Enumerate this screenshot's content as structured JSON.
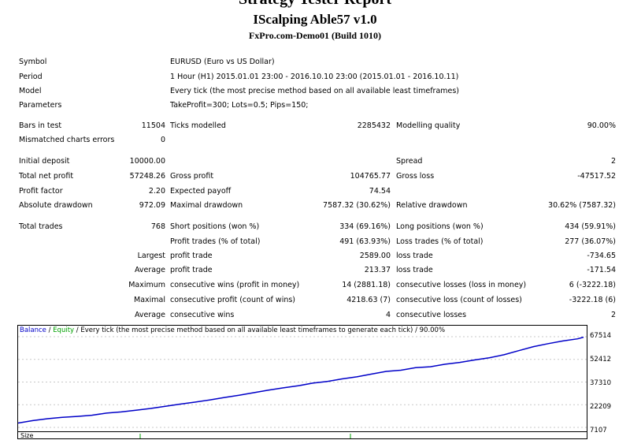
{
  "header": {
    "title": "Strategy Tester Report",
    "expert": "IScalping Able57 v1.0",
    "server": "FxPro.com-Demo01 (Build 1010)"
  },
  "info": [
    {
      "label": "Symbol",
      "value": "EURUSD (Euro vs US Dollar)"
    },
    {
      "label": "Period",
      "value": "1 Hour (H1) 2015.01.01 23:00 - 2016.10.10 23:00 (2015.01.01 - 2016.10.11)"
    },
    {
      "label": "Model",
      "value": "Every tick (the most precise method based on all available least timeframes)"
    },
    {
      "label": "Parameters",
      "value": "TakeProfit=300; Lots=0.5; Pips=150;"
    }
  ],
  "stats": {
    "bars_label": "Bars in test",
    "bars": "11504",
    "ticks_label": "Ticks modelled",
    "ticks": "2285432",
    "quality_label": "Modelling quality",
    "quality": "90.00%",
    "mismatch_label": "Mismatched charts errors",
    "mismatch": "0",
    "deposit_label": "Initial deposit",
    "deposit": "10000.00",
    "spread_label": "Spread",
    "spread": "2",
    "net_label": "Total net profit",
    "net": "57248.26",
    "gross_profit_label": "Gross profit",
    "gross_profit": "104765.77",
    "gross_loss_label": "Gross loss",
    "gross_loss": "-47517.52",
    "pf_label": "Profit factor",
    "pf": "2.20",
    "payoff_label": "Expected payoff",
    "payoff": "74.54",
    "abs_dd_label": "Absolute drawdown",
    "abs_dd": "972.09",
    "max_dd_label": "Maximal drawdown",
    "max_dd": "7587.32 (30.62%)",
    "rel_dd_label": "Relative drawdown",
    "rel_dd": "30.62% (7587.32)",
    "trades_label": "Total trades",
    "trades": "768",
    "short_label": "Short positions (won %)",
    "short": "334 (69.16%)",
    "long_label": "Long positions (won %)",
    "long": "434 (59.91%)",
    "pt_label": "Profit trades (% of total)",
    "pt": "491 (63.93%)",
    "lt_label": "Loss trades (% of total)",
    "lt": "277 (36.07%)",
    "largest_label": "Largest",
    "lpt_label": "profit trade",
    "lpt": "2589.00",
    "llt_label": "loss trade",
    "llt": "-734.65",
    "average_label": "Average",
    "apt_label": "profit trade",
    "apt": "213.37",
    "alt_label": "loss trade",
    "alt": "-171.54",
    "maximum_label": "Maximum",
    "mcw_label": "consecutive wins (profit in money)",
    "mcw": "14 (2881.18)",
    "mcl_label": "consecutive losses (loss in money)",
    "mcl": "6 (-3222.18)",
    "maximal_label": "Maximal",
    "mcp_label": "consecutive profit (count of wins)",
    "mcp": "4218.63 (7)",
    "mcloss_label": "consecutive loss (count of losses)",
    "mcloss": "-3222.18 (6)",
    "average2_label": "Average",
    "acw_label": "consecutive wins",
    "acw": "4",
    "acl_label": "consecutive losses",
    "acl": "2"
  },
  "chart": {
    "legend_balance": "Balance",
    "legend_sep": " / ",
    "legend_equity": "Equity",
    "legend_rest": " / Every tick (the most precise method based on all available least timeframes to generate each tick) / 90.00%",
    "y_ticks": [
      "67514",
      "52412",
      "37310",
      "22209",
      "7107"
    ],
    "size_label": "Size"
  },
  "chart_data": {
    "type": "line",
    "xlabel": "",
    "ylabel": "",
    "ylim": [
      7107,
      67514
    ],
    "series": [
      {
        "name": "Balance",
        "color": "#0000c8",
        "x": [
          0,
          20,
          40,
          60,
          80,
          100,
          120,
          140,
          160,
          180,
          200,
          220,
          240,
          260,
          280,
          300,
          320,
          340,
          360,
          380,
          400,
          420,
          440,
          460,
          480,
          500,
          520,
          540,
          560,
          580,
          600,
          620,
          640,
          660,
          680,
          700,
          720,
          740,
          760,
          768
        ],
        "values": [
          10000,
          11600,
          12900,
          13800,
          14400,
          15200,
          16600,
          17400,
          18500,
          19700,
          21200,
          22600,
          23900,
          25400,
          27000,
          28500,
          30200,
          31900,
          33400,
          34800,
          36600,
          37700,
          39400,
          40800,
          42600,
          44400,
          45200,
          46900,
          47500,
          49200,
          50400,
          52000,
          53500,
          55500,
          58200,
          60900,
          62900,
          64700,
          66100,
          67200
        ]
      },
      {
        "name": "Equity",
        "color": "#00a000"
      }
    ]
  }
}
